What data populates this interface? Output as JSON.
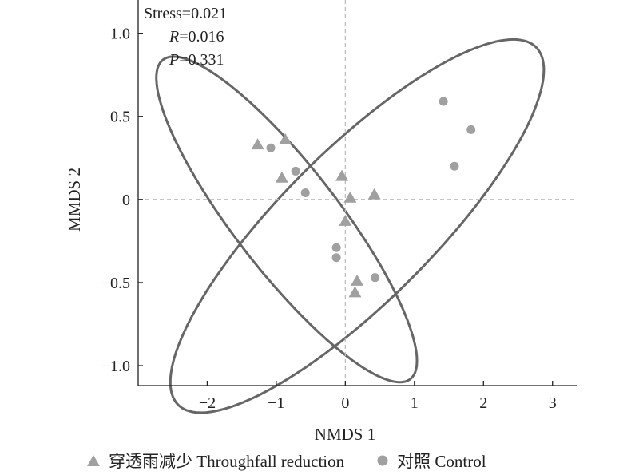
{
  "chart_data": {
    "type": "scatter",
    "xlabel": "NMDS 1",
    "ylabel": "MMDS 2",
    "xlim": [
      -3,
      3.35
    ],
    "ylim": [
      -1.12,
      1.2
    ],
    "xticks": [
      -2,
      -1,
      0,
      1,
      2,
      3
    ],
    "xtick_labels": [
      "−2",
      "−1",
      "0",
      "1",
      "2",
      "3"
    ],
    "yticks": [
      -1.0,
      -0.5,
      0,
      0.5,
      1.0
    ],
    "ytick_labels": [
      "−1.0",
      "−0.5",
      "0",
      "0.5",
      "1.0"
    ],
    "reference_lines": {
      "x": 0,
      "y": 0
    },
    "stats": {
      "stress": "Stress=0.021",
      "r_name": "R",
      "r_value": "=0.016",
      "p_name": "P",
      "p_value": "=0.331"
    },
    "legend_position": "bottom",
    "series": [
      {
        "name": "穿透雨减少 Throughfall reduction",
        "marker": "triangle",
        "color": "#a0a0a0",
        "points": [
          [
            -1.27,
            0.33
          ],
          [
            -0.87,
            0.36
          ],
          [
            -0.92,
            0.13
          ],
          [
            -0.05,
            0.14
          ],
          [
            0.07,
            0.01
          ],
          [
            0.42,
            0.03
          ],
          [
            0.0,
            -0.13
          ],
          [
            0.17,
            -0.49
          ],
          [
            0.14,
            -0.56
          ]
        ]
      },
      {
        "name": "对照 Control",
        "marker": "circle",
        "color": "#a0a0a0",
        "points": [
          [
            -1.08,
            0.31
          ],
          [
            -0.72,
            0.17
          ],
          [
            -0.58,
            0.04
          ],
          [
            -0.13,
            -0.29
          ],
          [
            -0.13,
            -0.35
          ],
          [
            0.43,
            -0.47
          ],
          [
            1.42,
            0.59
          ],
          [
            1.82,
            0.42
          ],
          [
            1.58,
            0.2
          ]
        ]
      }
    ],
    "ellipses": [
      {
        "group": "穿透雨减少 Throughfall reduction",
        "center": [
          -0.85,
          -0.12
        ],
        "semi_axis_a": 2.08,
        "semi_axis_b": 0.44,
        "angle_deg": -25.5
      },
      {
        "group": "对照 Control",
        "center": [
          0.17,
          -0.16
        ],
        "semi_axis_a": 2.87,
        "semi_axis_b": 0.58,
        "angle_deg": 20
      }
    ]
  }
}
